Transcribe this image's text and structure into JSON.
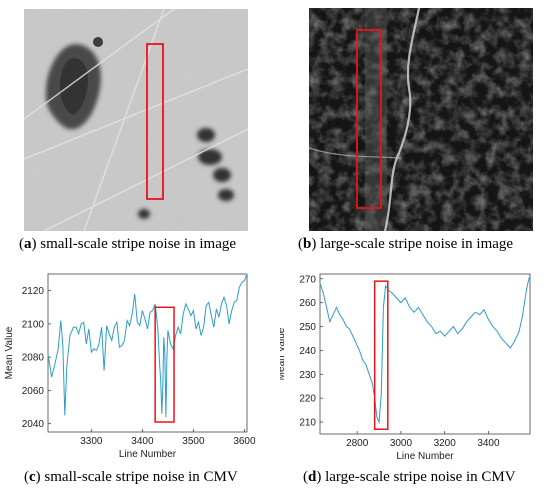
{
  "figure": {
    "captions": [
      {
        "tag": "a",
        "text": "small-scale stripe noise in image"
      },
      {
        "tag": "b",
        "text": "large-scale stripe noise in image"
      },
      {
        "tag": "c",
        "text": "small-scale stripe noise in CMV"
      },
      {
        "tag": "d",
        "text": "large-scale stripe noise in CMV"
      }
    ],
    "highlight_color": "#e8141b",
    "line_color": "#2b9ec6"
  },
  "chart_data": [
    {
      "type": "line",
      "xlabel": "Line Number",
      "ylabel": "Mean Value",
      "xlim": [
        3215,
        3605
      ],
      "ylim": [
        2035,
        2130
      ],
      "xticks": [
        "3300",
        "3400",
        "3500",
        "3600"
      ],
      "yticks": [
        "2040",
        "2060",
        "2080",
        "2100",
        "2120"
      ],
      "highlight_x": [
        3425,
        3462
      ],
      "highlight_y": [
        2041,
        2110
      ],
      "series": [
        {
          "x": [
            3215,
            3222,
            3228,
            3235,
            3240,
            3244,
            3248,
            3252,
            3258,
            3265,
            3270,
            3275,
            3280,
            3285,
            3290,
            3295,
            3300,
            3305,
            3310,
            3315,
            3320,
            3325,
            3330,
            3335,
            3340,
            3345,
            3350,
            3355,
            3360,
            3365,
            3370,
            3375,
            3380,
            3385,
            3390,
            3395,
            3400,
            3405,
            3410,
            3415,
            3420,
            3425,
            3430,
            3434,
            3436,
            3438,
            3440,
            3442,
            3444,
            3446,
            3448,
            3450,
            3455,
            3460,
            3465,
            3470,
            3475,
            3480,
            3485,
            3490,
            3495,
            3500,
            3505,
            3510,
            3515,
            3520,
            3525,
            3530,
            3535,
            3540,
            3545,
            3550,
            3555,
            3560,
            3565,
            3570,
            3575,
            3580,
            3585,
            3590,
            3595,
            3600,
            3605
          ],
          "values": [
            2082,
            2068,
            2075,
            2085,
            2102,
            2088,
            2045,
            2075,
            2093,
            2098,
            2098,
            2094,
            2100,
            2101,
            2088,
            2097,
            2083,
            2085,
            2084,
            2088,
            2098,
            2072,
            2099,
            2094,
            2090,
            2098,
            2101,
            2086,
            2087,
            2090,
            2102,
            2099,
            2106,
            2118,
            2101,
            2099,
            2108,
            2103,
            2097,
            2107,
            2108,
            2112,
            2098,
            2075,
            2065,
            2046,
            2062,
            2092,
            2083,
            2044,
            2079,
            2096,
            2088,
            2085,
            2093,
            2098,
            2094,
            2106,
            2112,
            2109,
            2105,
            2108,
            2097,
            2101,
            2093,
            2098,
            2111,
            2113,
            2105,
            2098,
            2109,
            2104,
            2112,
            2116,
            2111,
            2100,
            2108,
            2113,
            2114,
            2122,
            2125,
            2126,
            2130
          ]
        }
      ]
    },
    {
      "type": "line",
      "xlabel": "Line Number",
      "ylabel": "Mean Value",
      "xlim": [
        2630,
        3590
      ],
      "ylim": [
        205,
        272
      ],
      "xticks": [
        "2800",
        "3000",
        "3200",
        "3400"
      ],
      "yticks": [
        "210",
        "220",
        "230",
        "240",
        "250",
        "260",
        "270"
      ],
      "highlight_x": [
        2880,
        2940
      ],
      "highlight_y": [
        207,
        269
      ],
      "series": [
        {
          "x": [
            2630,
            2645,
            2660,
            2675,
            2690,
            2705,
            2720,
            2735,
            2750,
            2765,
            2780,
            2795,
            2810,
            2825,
            2840,
            2855,
            2870,
            2880,
            2890,
            2900,
            2910,
            2920,
            2930,
            2945,
            2960,
            2980,
            3000,
            3020,
            3040,
            3060,
            3080,
            3100,
            3120,
            3140,
            3160,
            3180,
            3200,
            3220,
            3240,
            3260,
            3280,
            3300,
            3320,
            3340,
            3360,
            3380,
            3400,
            3420,
            3440,
            3460,
            3480,
            3500,
            3520,
            3540,
            3555,
            3565,
            3575,
            3585,
            3590
          ],
          "values": [
            268,
            264,
            258,
            252,
            255,
            258,
            255,
            253,
            250,
            249,
            246,
            243,
            240,
            236,
            234,
            230,
            226,
            220,
            212,
            210,
            222,
            258,
            267,
            265,
            264,
            262,
            260,
            262,
            258,
            256,
            258,
            255,
            252,
            250,
            247,
            248,
            246,
            248,
            250,
            247,
            249,
            252,
            254,
            256,
            255,
            257,
            253,
            250,
            248,
            245,
            243,
            241,
            244,
            248,
            254,
            260,
            266,
            270,
            271
          ]
        }
      ]
    }
  ]
}
